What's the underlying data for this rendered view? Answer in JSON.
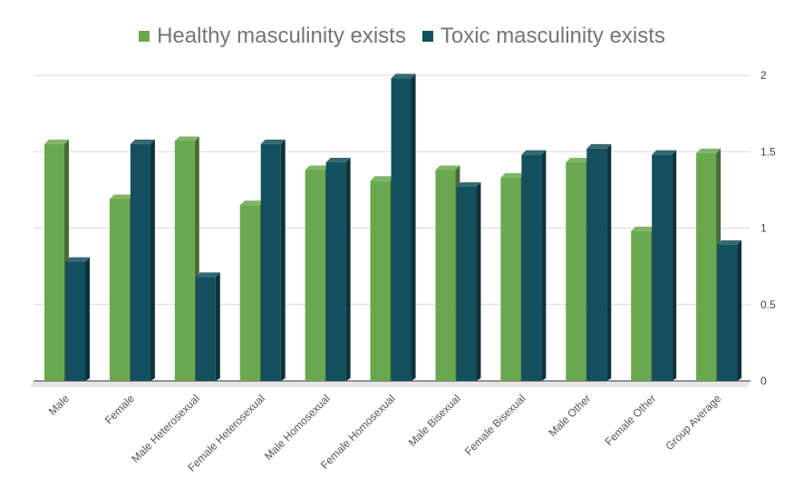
{
  "chart_data": {
    "type": "bar",
    "style": "3d-clustered",
    "categories": [
      "Male",
      "Female",
      "Male Heterosexual",
      "Female Heterosexual",
      "Male Homosexual",
      "Female Homosexual",
      "Male Bisexual",
      "Female Bisexual",
      "Male Other",
      "Female Other",
      "Group Average"
    ],
    "series": [
      {
        "name": "Healthy masculinity exists",
        "color": "#6aa84f",
        "values": [
          1.55,
          1.19,
          1.57,
          1.15,
          1.38,
          1.31,
          1.38,
          1.33,
          1.43,
          0.98,
          1.49
        ]
      },
      {
        "name": "Toxic masculinity exists",
        "color": "#134f5c",
        "values": [
          0.78,
          1.55,
          0.68,
          1.55,
          1.43,
          1.98,
          1.27,
          1.48,
          1.52,
          1.48,
          0.89
        ]
      }
    ],
    "yaxis_side": "right",
    "ylim": [
      0,
      2
    ],
    "yticks": [
      "0",
      "0.5",
      "1",
      "1.5",
      "2"
    ],
    "grid": true,
    "legend_position": "top"
  }
}
